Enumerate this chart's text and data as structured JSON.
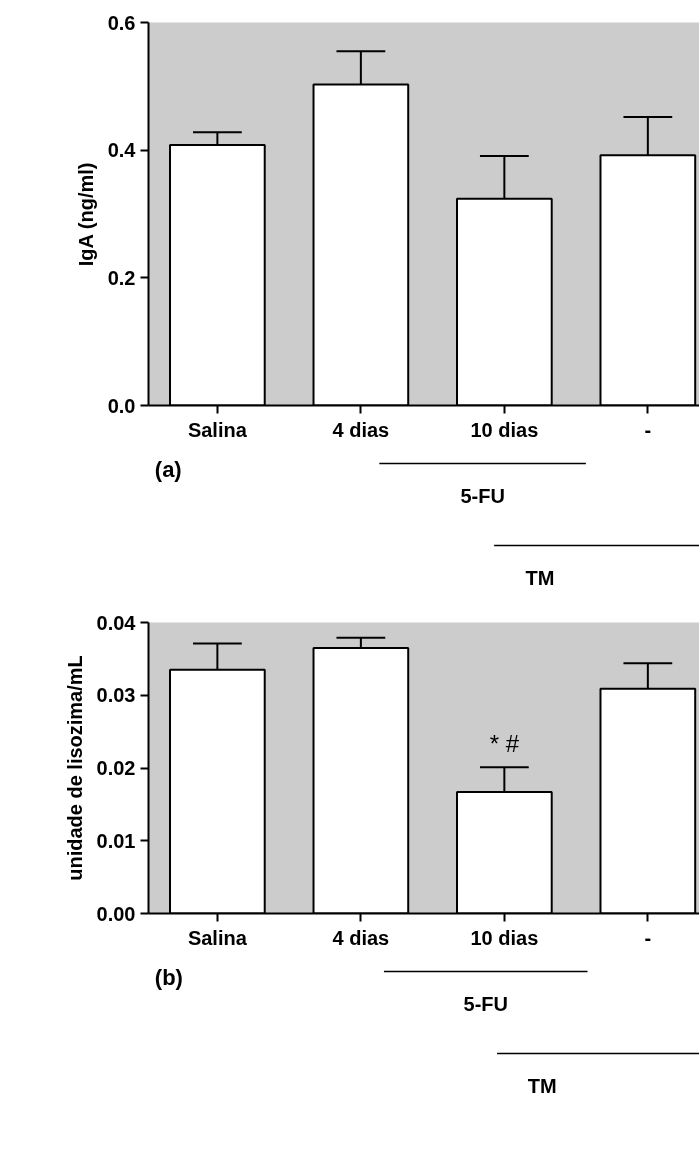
{
  "chart_data": [
    {
      "type": "bar",
      "categories": [
        "Salina",
        "4 dias",
        "10 dias",
        "-"
      ],
      "values": [
        0.408,
        0.503,
        0.324,
        0.392
      ],
      "errors": [
        [
          0.408,
          0.428
        ],
        [
          0.503,
          0.555
        ],
        [
          0.324,
          0.391
        ],
        [
          0.392,
          0.452
        ]
      ],
      "color": "#ffffff",
      "ylabel": "IgA (ng/ml)",
      "ylim": [
        0,
        0.6
      ],
      "yticks": [
        {
          "value": 0,
          "label": "0.0"
        },
        0.2,
        0.4,
        0.6
      ],
      "grid": false,
      "annotations": [
        "(a)",
        "5-FU",
        "TM"
      ]
    },
    {
      "type": "bar",
      "categories": [
        "Salina",
        "4 dias",
        "10 dias",
        "-"
      ],
      "values": [
        0.0335,
        0.0365,
        0.0167,
        0.0309
      ],
      "errors": [
        [
          0.0335,
          0.0371
        ],
        [
          0.0365,
          0.0379
        ],
        [
          0.0167,
          0.0201
        ],
        [
          0.0309,
          0.0344
        ]
      ],
      "color": "#ffffff",
      "ylabel": "unidade de lisozima/mL",
      "ylim": [
        0,
        0.04
      ],
      "yticks": [
        {
          "value": 0,
          "label": "0.00"
        },
        0.01,
        0.02,
        0.03,
        0.04
      ],
      "grid": false,
      "annotations": [
        "(b)",
        "5-FU",
        "TM",
        "* #"
      ]
    }
  ]
}
